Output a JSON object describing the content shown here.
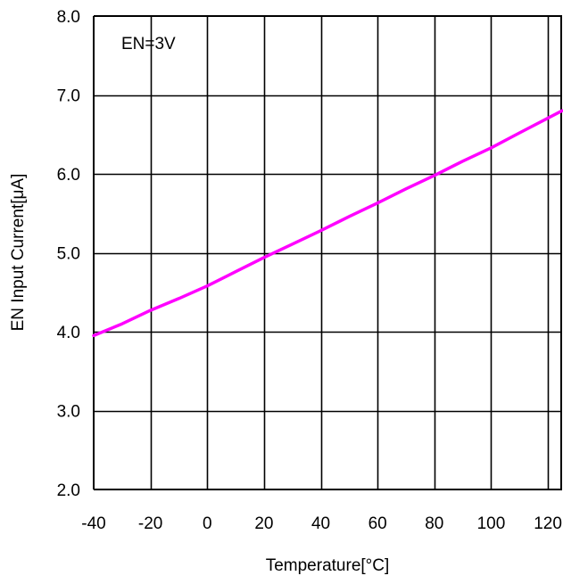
{
  "chart_data": {
    "type": "line",
    "title": "",
    "annotation": "EN=3V",
    "xlabel": "Temperature[°C]",
    "ylabel": "EN Input Current[μA]",
    "xlim": [
      -40,
      125
    ],
    "ylim": [
      2.0,
      8.0
    ],
    "x_ticks": [
      -40,
      -20,
      0,
      20,
      40,
      60,
      80,
      100,
      120
    ],
    "x_tick_labels": [
      "-40",
      "-20",
      "0",
      "20",
      "40",
      "60",
      "80",
      "100",
      "120"
    ],
    "y_ticks": [
      2.0,
      3.0,
      4.0,
      5.0,
      6.0,
      7.0,
      8.0
    ],
    "y_tick_labels": [
      "2.0",
      "3.0",
      "4.0",
      "5.0",
      "6.0",
      "7.0",
      "8.0"
    ],
    "grid": true,
    "series": [
      {
        "color": "#ff00ff",
        "x": [
          -40,
          -30,
          -20,
          -10,
          0,
          10,
          20,
          30,
          40,
          50,
          60,
          70,
          80,
          90,
          100,
          110,
          125
        ],
        "y": [
          3.95,
          4.1,
          4.27,
          4.42,
          4.58,
          4.76,
          4.94,
          5.11,
          5.28,
          5.46,
          5.63,
          5.81,
          5.98,
          6.16,
          6.33,
          6.52,
          6.8
        ]
      }
    ]
  }
}
